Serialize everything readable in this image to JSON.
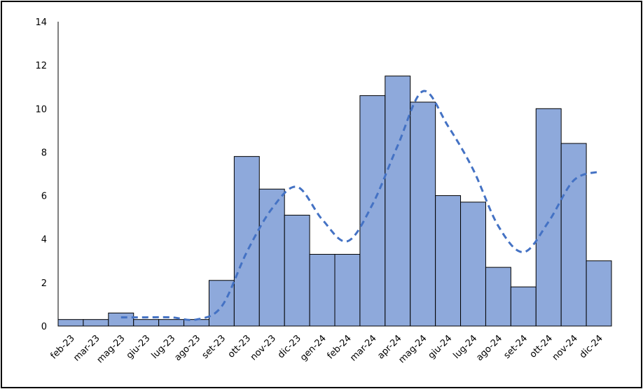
{
  "chart_data": {
    "type": "bar",
    "categories": [
      "feb-23",
      "mar-23",
      "mag-23",
      "giu-23",
      "lug-23",
      "ago-23",
      "set-23",
      "ott-23",
      "nov-23",
      "dic-23",
      "gen-24",
      "feb-24",
      "mar-24",
      "apr-24",
      "mag-24",
      "giu-24",
      "lug-24",
      "ago-24",
      "set-24",
      "ott-24",
      "nov-24",
      "dic-24"
    ],
    "series": [
      {
        "values": [
          0.3,
          0.3,
          0.6,
          0.3,
          0.3,
          0.3,
          2.1,
          7.8,
          6.3,
          5.1,
          3.3,
          3.3,
          10.6,
          11.5,
          10.3,
          6.0,
          5.7,
          2.7,
          1.8,
          10.0,
          8.4,
          3.0
        ],
        "color": "#8EA9DB",
        "type": "bar"
      },
      {
        "values": [
          null,
          null,
          0.4,
          0.4,
          0.4,
          0.3,
          0.9,
          3.4,
          5.4,
          6.4,
          4.9,
          3.9,
          5.6,
          8.3,
          10.8,
          9.2,
          7.2,
          4.6,
          3.4,
          4.8,
          6.7,
          7.1
        ],
        "color": "#4472C4",
        "type": "line",
        "style": "dashed"
      }
    ],
    "title": "",
    "xlabel": "",
    "ylabel": "",
    "ylim": [
      0,
      14
    ],
    "yticks": [
      "0",
      "2",
      "4",
      "6",
      "8",
      "10",
      "12",
      "14"
    ],
    "grid": false,
    "legend": "none"
  }
}
